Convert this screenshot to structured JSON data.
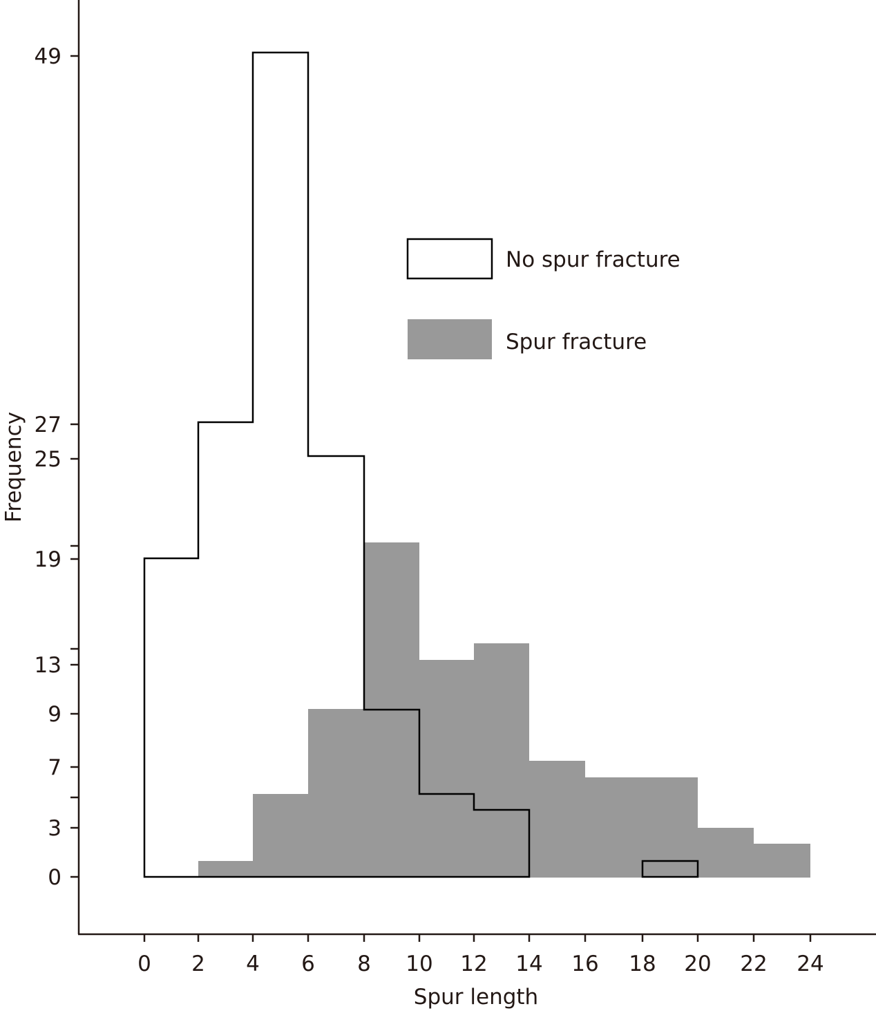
{
  "chart_data": {
    "type": "bar",
    "subtype": "histogram-overlay",
    "title": "",
    "xlabel": "Spur length",
    "ylabel": "Frequency",
    "x_ticks": [
      0,
      2,
      4,
      6,
      8,
      10,
      12,
      14,
      16,
      18,
      20,
      22,
      24
    ],
    "y_ticks": [
      0,
      3,
      5,
      7,
      9,
      13,
      14,
      19,
      20,
      25,
      27,
      49
    ],
    "y_tick_labels": [
      "0",
      "3",
      "",
      "7",
      "9",
      "13",
      "",
      "19",
      "",
      "25",
      "27",
      "49"
    ],
    "xlim": [
      -2,
      26
    ],
    "ylim": [
      0,
      49
    ],
    "grid": false,
    "legend_position": "upper-right-inside",
    "series": [
      {
        "name": "No spur fracture",
        "style": "outline",
        "color": "#000000",
        "bins": [
          {
            "from": 0,
            "to": 2,
            "count": 19
          },
          {
            "from": 2,
            "to": 4,
            "count": 27
          },
          {
            "from": 4,
            "to": 6,
            "count": 49
          },
          {
            "from": 6,
            "to": 8,
            "count": 25
          },
          {
            "from": 8,
            "to": 10,
            "count": 9
          },
          {
            "from": 10,
            "to": 12,
            "count": 5
          },
          {
            "from": 12,
            "to": 14,
            "count": 4
          },
          {
            "from": 14,
            "to": 16,
            "count": 0
          },
          {
            "from": 16,
            "to": 18,
            "count": 0
          },
          {
            "from": 18,
            "to": 20,
            "count": 1
          },
          {
            "from": 20,
            "to": 22,
            "count": 0
          },
          {
            "from": 22,
            "to": 24,
            "count": 0
          }
        ]
      },
      {
        "name": "Spur fracture",
        "style": "filled",
        "color": "#999999",
        "bins": [
          {
            "from": 0,
            "to": 2,
            "count": 0
          },
          {
            "from": 2,
            "to": 4,
            "count": 1
          },
          {
            "from": 4,
            "to": 6,
            "count": 5
          },
          {
            "from": 6,
            "to": 8,
            "count": 10
          },
          {
            "from": 8,
            "to": 10,
            "count": 20
          },
          {
            "from": 10,
            "to": 12,
            "count": 13
          },
          {
            "from": 12,
            "to": 14,
            "count": 14
          },
          {
            "from": 14,
            "to": 16,
            "count": 7
          },
          {
            "from": 16,
            "to": 18,
            "count": 6
          },
          {
            "from": 18,
            "to": 20,
            "count": 6
          },
          {
            "from": 20,
            "to": 22,
            "count": 3
          },
          {
            "from": 22,
            "to": 24,
            "count": 2
          }
        ]
      }
    ]
  },
  "legend": {
    "items": [
      {
        "label": "No spur fracture",
        "swatch": "outline"
      },
      {
        "label": "Spur fracture",
        "swatch": "filled"
      }
    ]
  },
  "axes": {
    "x_title": "Spur length",
    "y_title": "Frequency"
  }
}
